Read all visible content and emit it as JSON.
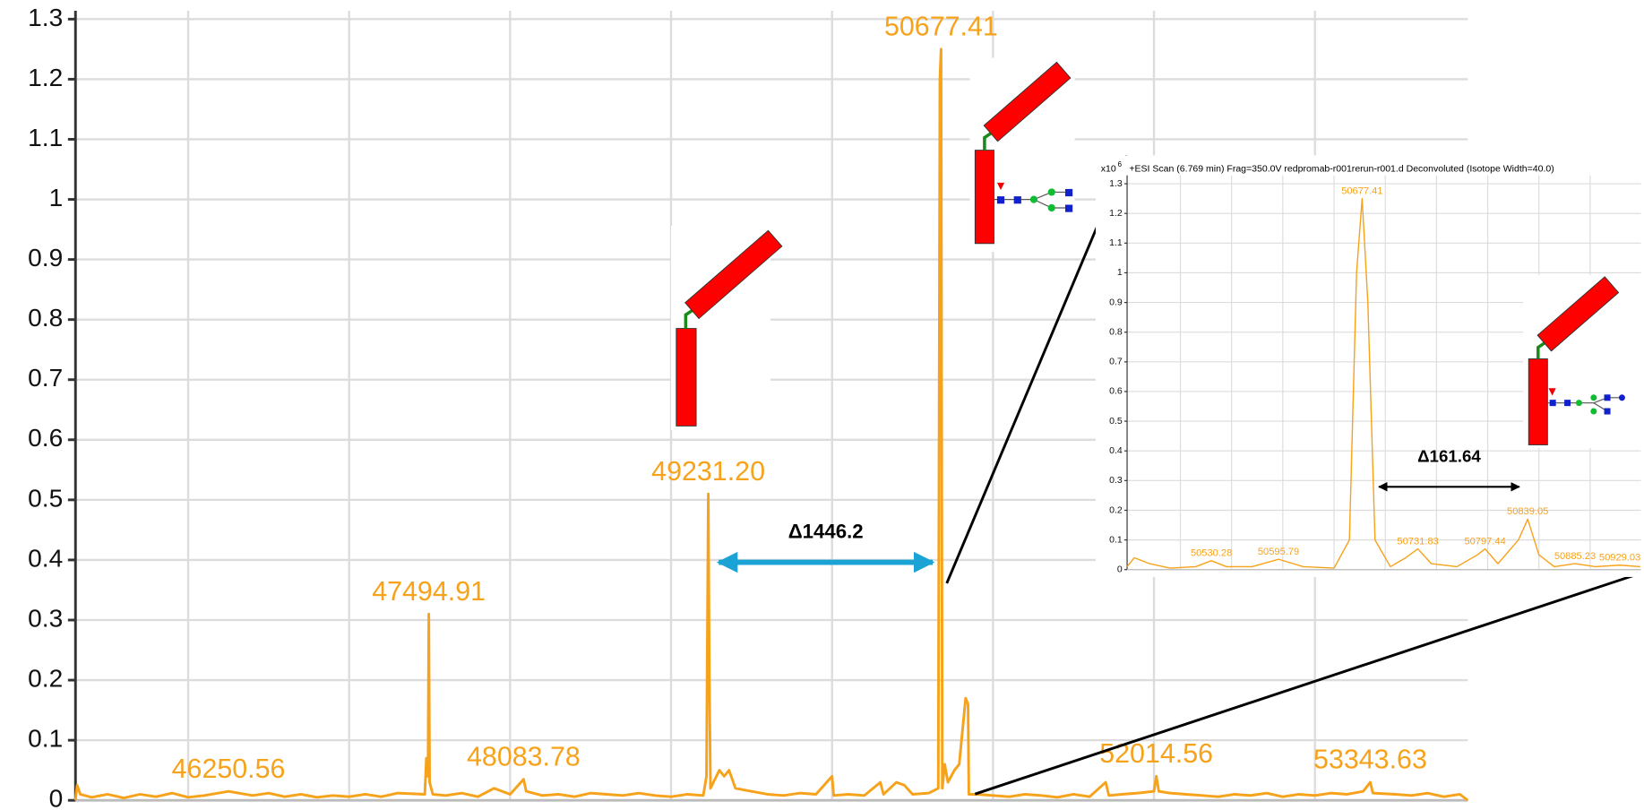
{
  "chart_data": [
    {
      "type": "line",
      "color": "#f7a21b",
      "xlim": [
        45300,
        53950
      ],
      "ylim": [
        0,
        1.3
      ],
      "yticks": [
        0,
        0.1,
        0.2,
        0.3,
        0.4,
        0.5,
        0.6,
        0.7,
        0.8,
        0.9,
        1,
        1.1,
        1.2,
        1.3
      ],
      "x_gridlines": [
        46000,
        47000,
        48000,
        49000,
        50000,
        51000,
        52000,
        53000
      ],
      "grid": true,
      "x": [
        45300,
        45310,
        45330,
        45400,
        45500,
        45600,
        45700,
        45800,
        45900,
        46000,
        46100,
        46250.56,
        46400,
        46500,
        46600,
        46700,
        46800,
        46900,
        47000,
        47100,
        47200,
        47300,
        47470,
        47480,
        47490,
        47494.91,
        47500,
        47520,
        47600,
        47700,
        47800,
        47900,
        48000,
        48083.78,
        48100,
        48200,
        48300,
        48400,
        48500,
        48600,
        48700,
        48800,
        48900,
        49000,
        49100,
        49200,
        49220,
        49231.2,
        49238,
        49245,
        49300,
        49330,
        49360,
        49400,
        49500,
        49600,
        49700,
        49800,
        49900,
        50000,
        50010,
        50100,
        50200,
        50300,
        50320,
        50400,
        50450,
        50500,
        50600,
        50660,
        50670,
        50677.41,
        50685,
        50700,
        50720,
        50760,
        50790,
        50830,
        50845,
        50850,
        50900,
        51000,
        51100,
        51200,
        51300,
        51400,
        51500,
        51600,
        51700,
        51720,
        51800,
        51900,
        52000,
        52014.56,
        52030,
        52100,
        52200,
        52300,
        52400,
        52500,
        52600,
        52700,
        52800,
        52900,
        53000,
        53100,
        53200,
        53300,
        53343.63,
        53360,
        53500,
        53600,
        53700,
        53800,
        53900,
        53950
      ],
      "values": [
        0,
        0.025,
        0.01,
        0.005,
        0.01,
        0.004,
        0.01,
        0.006,
        0.012,
        0.005,
        0.008,
        0.015,
        0.008,
        0.012,
        0.006,
        0.01,
        0.005,
        0.008,
        0.006,
        0.01,
        0.006,
        0.012,
        0.01,
        0.07,
        0.04,
        0.31,
        0.03,
        0.01,
        0.008,
        0.012,
        0.006,
        0.02,
        0.01,
        0.035,
        0.015,
        0.008,
        0.01,
        0.006,
        0.012,
        0.01,
        0.008,
        0.012,
        0.008,
        0.006,
        0.01,
        0.008,
        0.04,
        0.51,
        0.2,
        0.02,
        0.05,
        0.04,
        0.05,
        0.02,
        0.015,
        0.01,
        0.008,
        0.012,
        0.01,
        0.04,
        0.008,
        0.01,
        0.008,
        0.03,
        0.01,
        0.03,
        0.025,
        0.01,
        0.012,
        0.02,
        1.2,
        1.25,
        0.02,
        0.06,
        0.03,
        0.05,
        0.06,
        0.17,
        0.16,
        0.01,
        0.01,
        0.008,
        0.006,
        0.01,
        0.008,
        0.005,
        0.01,
        0.006,
        0.03,
        0.008,
        0.01,
        0.012,
        0.015,
        0.04,
        0.015,
        0.012,
        0.01,
        0.008,
        0.006,
        0.01,
        0.008,
        0.012,
        0.006,
        0.01,
        0.008,
        0.012,
        0.01,
        0.015,
        0.03,
        0.012,
        0.01,
        0.008,
        0.012,
        0.006,
        0.01,
        0
      ],
      "peaks": {
        "x": [
          46250.56,
          47494.91,
          48083.78,
          49231.2,
          50677.41,
          52014.56,
          53343.63
        ],
        "x_labels": [
          "46250.56",
          "47494.91",
          "48083.78",
          "49231.20",
          "50677.41",
          "52014.56",
          "53343.63"
        ],
        "values": [
          0.015,
          0.31,
          0.035,
          0.51,
          1.25,
          0.04,
          0.03
        ]
      },
      "annotation": "Δ1446.2",
      "arrow_peaks": [
        3,
        4
      ]
    },
    {
      "type": "line",
      "title": "+ESI Scan (6.769 min) Frag=350.0V redpromab-r001rerun-r001.d Deconvoluted (Isotope Width=40.0)",
      "y_scale_label": "x10",
      "y_scale_exponent": "6",
      "color": "#f7a21b",
      "xlim": [
        50448,
        50949.5
      ],
      "ylim": [
        0,
        1.3
      ],
      "yticks": [
        0,
        0.1,
        0.2,
        0.3,
        0.4,
        0.5,
        0.6,
        0.7,
        0.8,
        0.9,
        1,
        1.1,
        1.2,
        1.3
      ],
      "x_gridlines": [
        50500,
        50550,
        50600,
        50650,
        50700,
        50750,
        50800,
        50850,
        50900
      ],
      "grid": true,
      "x": [
        50448,
        50455,
        50470,
        50490,
        50515,
        50530.28,
        50545,
        50570,
        50595.79,
        50620,
        50650,
        50665,
        50672,
        50677.41,
        50683,
        50690,
        50705,
        50720,
        50731.83,
        50745,
        50770,
        50790,
        50797.44,
        50810,
        50830,
        50839.05,
        50850,
        50865,
        50885.23,
        50905,
        50929.03,
        50949
      ],
      "values": [
        0.01,
        0.04,
        0.02,
        0.005,
        0.01,
        0.03,
        0.01,
        0.01,
        0.035,
        0.01,
        0.005,
        0.1,
        1.0,
        1.25,
        0.9,
        0.1,
        0.01,
        0.04,
        0.07,
        0.02,
        0.01,
        0.05,
        0.07,
        0.02,
        0.1,
        0.17,
        0.05,
        0.01,
        0.02,
        0.01,
        0.015,
        0.01
      ],
      "peaks": {
        "x": [
          50530.28,
          50595.79,
          50677.41,
          50731.83,
          50797.44,
          50839.05,
          50885.23,
          50929.03
        ],
        "x_labels": [
          "50530.28",
          "50595.79",
          "50677.41",
          "50731.83",
          "50797.44",
          "50839.05",
          "50885.23",
          "50929.03"
        ],
        "values": [
          0.03,
          0.035,
          1.25,
          0.07,
          0.07,
          0.17,
          0.02,
          0.015
        ]
      },
      "annotation": "Δ161.64",
      "arrow_peaks": [
        2,
        5
      ]
    }
  ]
}
